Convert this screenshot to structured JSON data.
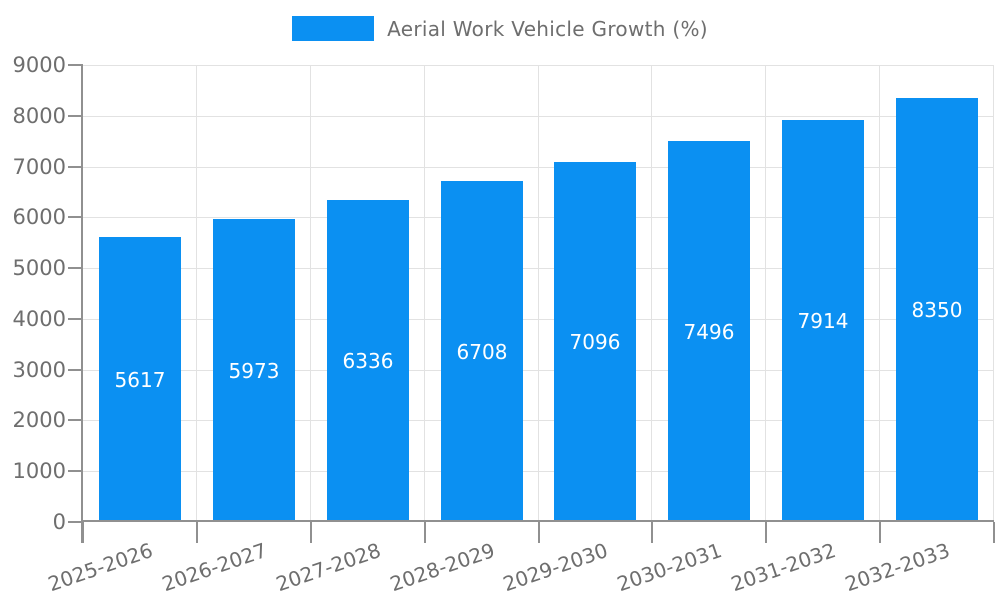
{
  "chart_data": {
    "type": "bar",
    "title": "Aerial Work Vehicle Growth (%)",
    "categories": [
      "2025-2026",
      "2026-2027",
      "2027-2028",
      "2028-2029",
      "2029-2030",
      "2030-2031",
      "2031-2032",
      "2032-2033"
    ],
    "values": [
      5617,
      5973,
      6336,
      6708,
      7096,
      7496,
      7914,
      8350
    ],
    "xlabel": "",
    "ylabel": "",
    "ylim": [
      0,
      9000
    ],
    "y_ticks": [
      0,
      1000,
      2000,
      3000,
      4000,
      5000,
      6000,
      7000,
      8000,
      9000
    ],
    "grid": true,
    "legend_position": "top",
    "value_labels": "inside-center",
    "colors": {
      "bar": "#0b90f2",
      "value_label": "#ffffff",
      "axis": "#909090",
      "gridline": "#e2e2e2",
      "tick_text": "#6e6e6e"
    }
  }
}
